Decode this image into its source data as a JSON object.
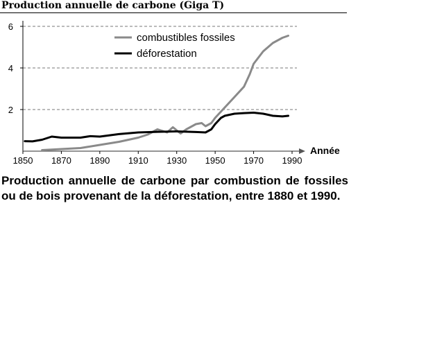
{
  "chart_data": {
    "type": "line",
    "title": "Production annuelle de carbone (Giga T)",
    "xlabel": "Année",
    "ylabel": "",
    "xlim": [
      1850,
      1990
    ],
    "ylim": [
      0,
      6
    ],
    "xticks": [
      1850,
      1870,
      1890,
      1910,
      1930,
      1950,
      1970,
      1990
    ],
    "yticks": [
      2,
      4,
      6
    ],
    "grid": "horizontal dashed",
    "legend": "top-right",
    "series": [
      {
        "name": "combustibles fossiles",
        "color": "#8a8a8a",
        "x": [
          1860,
          1870,
          1880,
          1890,
          1900,
          1910,
          1915,
          1920,
          1925,
          1928,
          1930,
          1932,
          1935,
          1940,
          1943,
          1945,
          1948,
          1950,
          1955,
          1960,
          1965,
          1968,
          1970,
          1975,
          1980,
          1985,
          1988
        ],
        "y": [
          0.05,
          0.1,
          0.15,
          0.3,
          0.45,
          0.65,
          0.8,
          1.05,
          0.9,
          1.15,
          1.0,
          0.85,
          1.05,
          1.3,
          1.35,
          1.2,
          1.35,
          1.6,
          2.1,
          2.6,
          3.1,
          3.7,
          4.2,
          4.8,
          5.2,
          5.45,
          5.55
        ]
      },
      {
        "name": "déforestation",
        "color": "#000000",
        "x": [
          1851,
          1855,
          1860,
          1865,
          1870,
          1880,
          1885,
          1890,
          1900,
          1910,
          1920,
          1930,
          1940,
          1945,
          1948,
          1950,
          1953,
          1955,
          1960,
          1965,
          1970,
          1975,
          1980,
          1985,
          1988
        ],
        "y": [
          0.48,
          0.47,
          0.55,
          0.7,
          0.65,
          0.65,
          0.72,
          0.7,
          0.82,
          0.9,
          0.93,
          0.95,
          0.92,
          0.9,
          1.05,
          1.3,
          1.6,
          1.7,
          1.8,
          1.83,
          1.85,
          1.8,
          1.7,
          1.67,
          1.7
        ]
      }
    ]
  },
  "caption": "Production annuelle de carbone par combustion de fossiles ou de bois provenant de la déforestation, entre 1880 et 1990."
}
